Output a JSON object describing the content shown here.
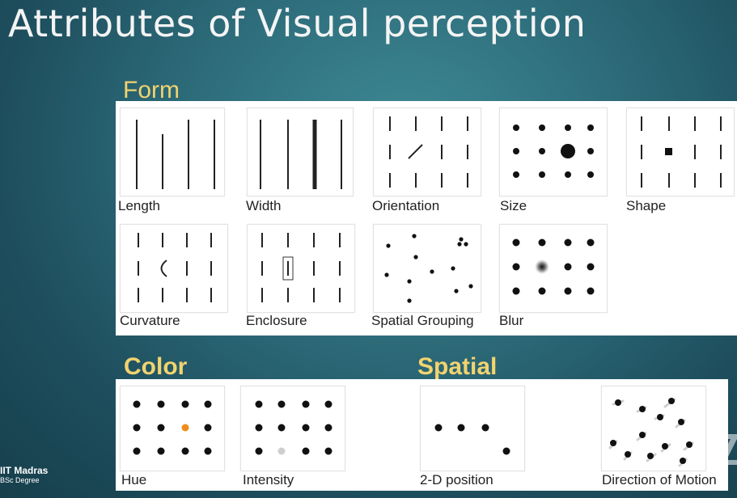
{
  "slide": {
    "title": "Attributes of Visual perception",
    "sections": {
      "form": "Form",
      "color": "Color",
      "spatial": "Spatial"
    },
    "form_items": [
      "Length",
      "Width",
      "Orientation",
      "Size",
      "Shape",
      "Curvature",
      "Enclosure",
      "Spatial Grouping",
      "Blur"
    ],
    "color_items": [
      "Hue",
      "Intensity"
    ],
    "spatial_items": [
      "2-D position",
      "Direction of Motion"
    ],
    "logo": {
      "line1": "IIT Madras",
      "line2": "BSc Degree"
    }
  },
  "colors": {
    "accent_heading": "#f1d36f",
    "hue_highlight": "#f08c1a",
    "intensity_highlight": "#cfcfcf"
  },
  "icons": [
    "zoom-watermark-icon"
  ]
}
